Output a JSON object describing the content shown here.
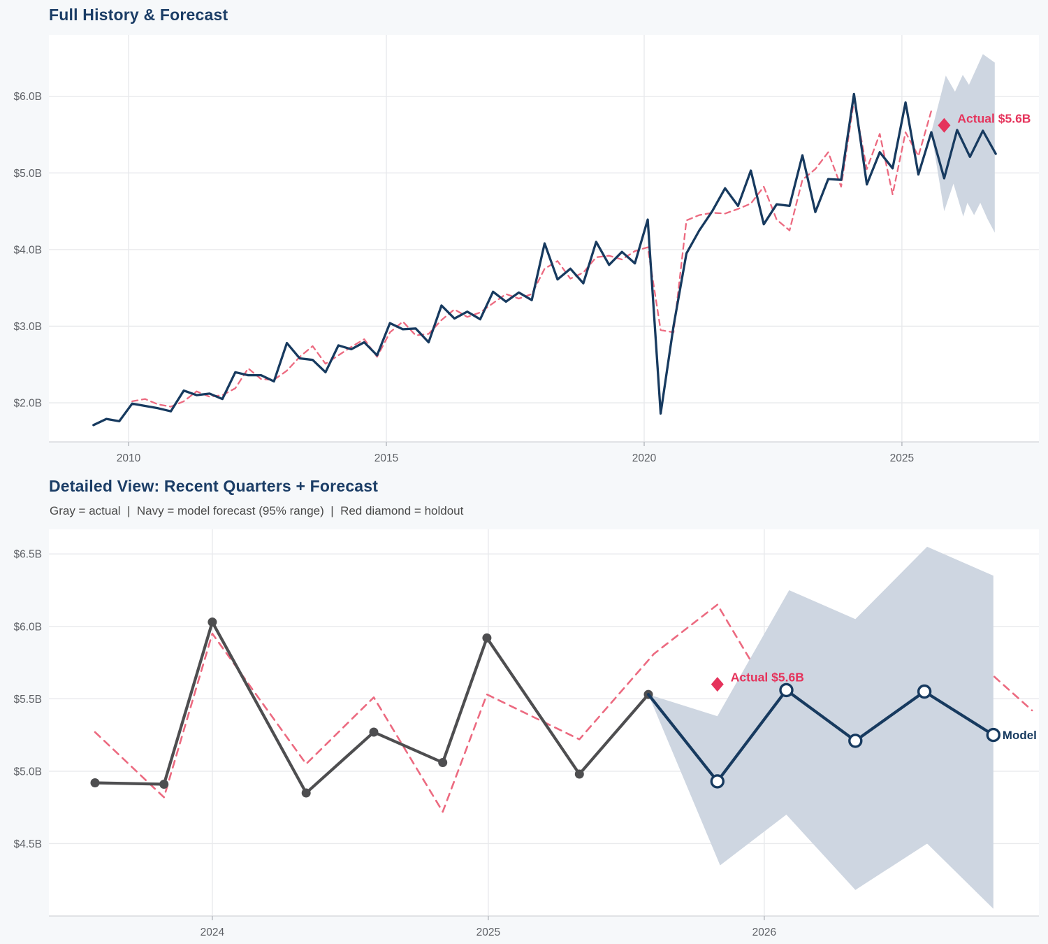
{
  "page": {
    "background": "#F6F8FA"
  },
  "colors": {
    "navy": "#173A5F",
    "crimson": "#E5335B",
    "pink_dashed": "#EC6A80",
    "gray_line": "#4E4E50",
    "band": "#CED6E1",
    "grid": "#E8E9EC",
    "plot_bg": "#FFFFFF",
    "tick_text": "#5E6166",
    "title_text": "#1B3D66",
    "subtitle_text": "#4A4A4A",
    "spine": "#D8DADE",
    "tick_mark": "#B9BCC2"
  },
  "chart_data": [
    {
      "type": "line",
      "title": "Full History & Forecast",
      "xlim": [
        2008.455,
        2027.657
      ],
      "ylim": [
        1.49,
        6.8
      ],
      "grid": true,
      "x_ticks": [
        {
          "label": "2010",
          "x": 2010
        },
        {
          "label": "2015",
          "x": 2015
        },
        {
          "label": "2020",
          "x": 2020
        },
        {
          "label": "2025",
          "x": 2025
        }
      ],
      "y_ticks": [
        {
          "label": "$6.0B",
          "y": 6.0
        },
        {
          "label": "$5.0B",
          "y": 5.0
        },
        {
          "label": "$4.0B",
          "y": 4.0
        },
        {
          "label": "$3.0B",
          "y": 3.0
        },
        {
          "label": "$2.0B",
          "y": 2.0
        }
      ],
      "band": {
        "z": 2,
        "x_hi": [
          2025.57,
          2025.85,
          2026.03,
          2026.18,
          2026.3,
          2026.57,
          2026.8
        ],
        "hi": [
          5.53,
          6.27,
          6.06,
          6.28,
          6.15,
          6.55,
          6.44
        ],
        "x_lo": [
          2025.57,
          2025.82,
          2026.0,
          2026.19,
          2026.27,
          2026.4,
          2026.52,
          2026.66,
          2026.8
        ],
        "lo": [
          5.53,
          4.5,
          4.86,
          4.43,
          4.61,
          4.45,
          4.61,
          4.4,
          4.22
        ]
      },
      "series": [
        {
          "name": "fitted",
          "style": "pink_dashed",
          "z": 3,
          "x0": 2010.07,
          "dx": 0.25,
          "values": [
            2.02,
            2.05,
            1.98,
            1.95,
            2.02,
            2.15,
            2.08,
            2.1,
            2.19,
            2.45,
            2.31,
            2.3,
            2.42,
            2.6,
            2.74,
            2.51,
            2.62,
            2.73,
            2.83,
            2.6,
            2.92,
            3.06,
            2.88,
            2.9,
            3.08,
            3.22,
            3.12,
            3.18,
            3.3,
            3.42,
            3.36,
            3.42,
            3.75,
            3.85,
            3.62,
            3.7,
            3.9,
            3.92,
            3.87,
            3.98,
            4.03,
            2.95,
            2.92,
            4.38,
            4.45,
            4.48,
            4.47,
            4.53,
            4.6,
            4.82,
            4.39,
            4.25,
            4.91,
            5.05,
            5.27,
            4.82,
            5.95,
            5.05,
            5.51,
            4.72,
            5.53,
            5.22,
            5.81
          ]
        },
        {
          "name": "actual",
          "style": "navy_solid",
          "z": 4,
          "x0": 2009.32,
          "dx": 0.25,
          "values": [
            1.71,
            1.79,
            1.76,
            1.99,
            1.96,
            1.93,
            1.89,
            2.16,
            2.1,
            2.12,
            2.05,
            2.4,
            2.36,
            2.36,
            2.28,
            2.78,
            2.58,
            2.56,
            2.4,
            2.75,
            2.7,
            2.79,
            2.62,
            3.04,
            2.96,
            2.97,
            2.79,
            3.27,
            3.1,
            3.19,
            3.09,
            3.45,
            3.32,
            3.44,
            3.34,
            4.08,
            3.61,
            3.75,
            3.56,
            4.1,
            3.8,
            3.97,
            3.82,
            4.39,
            1.86,
            3.0,
            3.95,
            4.25,
            4.5,
            4.8,
            4.57,
            5.03,
            4.33,
            4.59,
            4.57,
            5.23,
            4.49,
            4.92,
            4.91,
            6.03,
            4.85,
            5.27,
            5.06,
            5.92,
            4.98,
            5.53
          ]
        },
        {
          "name": "model_forecast",
          "style": "navy_solid",
          "z": 5,
          "x0": 2025.57,
          "dx": 0.25,
          "values": [
            5.53,
            4.93,
            5.56,
            5.21,
            5.55,
            5.25
          ]
        }
      ],
      "annotation": {
        "text": "Actual $5.6B",
        "x": 2025.82,
        "y": 5.62
      }
    },
    {
      "type": "line",
      "title": "Detailed View: Recent Quarters + Forecast",
      "subtitle": "Gray = actual  |  Navy = model forecast (95% range)  |  Red diamond = holdout",
      "xlim": [
        2023.408,
        2026.995
      ],
      "ylim": [
        4.0,
        6.67
      ],
      "grid": true,
      "x_ticks": [
        {
          "label": "2024",
          "x": 2024
        },
        {
          "label": "2025",
          "x": 2025
        },
        {
          "label": "2026",
          "x": 2026
        }
      ],
      "y_ticks": [
        {
          "label": "$6.5B",
          "y": 6.5
        },
        {
          "label": "$6.0B",
          "y": 6.0
        },
        {
          "label": "$5.5B",
          "y": 5.5
        },
        {
          "label": "$5.0B",
          "y": 5.0
        },
        {
          "label": "$4.5B",
          "y": 4.5
        }
      ],
      "band": {
        "z": 3,
        "x_hi": [
          2025.58,
          2025.83,
          2026.09,
          2026.33,
          2026.59,
          2026.83
        ],
        "hi": [
          5.53,
          5.38,
          6.25,
          6.05,
          6.55,
          6.35
        ],
        "x_lo": [
          2025.58,
          2025.84,
          2026.08,
          2026.33,
          2026.59,
          2026.83
        ],
        "lo": [
          5.53,
          4.35,
          4.7,
          4.18,
          4.5,
          4.05
        ]
      },
      "series": [
        {
          "name": "dashed_prior",
          "style": "pink_dashed",
          "z": 2,
          "x": [
            2023.575,
            2023.825,
            2024.0,
            2024.34,
            2024.585,
            2024.835,
            2024.995,
            2025.33,
            2025.6,
            2025.83,
            2026.08,
            2026.33,
            2026.6,
            2026.97
          ],
          "values": [
            5.27,
            4.82,
            5.95,
            5.05,
            5.51,
            4.72,
            5.53,
            5.22,
            5.81,
            6.15,
            5.35,
            5.95,
            6.05,
            5.42
          ]
        },
        {
          "name": "actual",
          "style": "gray_marker",
          "z": 4,
          "x": [
            2023.575,
            2023.825,
            2024.0,
            2024.34,
            2024.585,
            2024.835,
            2024.995,
            2025.33,
            2025.58
          ],
          "values": [
            4.92,
            4.91,
            6.03,
            4.85,
            5.27,
            5.06,
            5.92,
            4.98,
            5.53
          ]
        },
        {
          "name": "model_forecast",
          "style": "navy_circle",
          "z": 5,
          "x": [
            2025.58,
            2025.83,
            2026.08,
            2026.33,
            2026.58,
            2026.83
          ],
          "values": [
            5.53,
            4.93,
            5.56,
            5.21,
            5.55,
            5.25
          ]
        }
      ],
      "annotation": {
        "text": "Actual $5.6B",
        "x": 2025.83,
        "y": 5.6
      },
      "end_label": {
        "text": "Model",
        "x": 2026.83,
        "y": 5.25
      }
    }
  ]
}
